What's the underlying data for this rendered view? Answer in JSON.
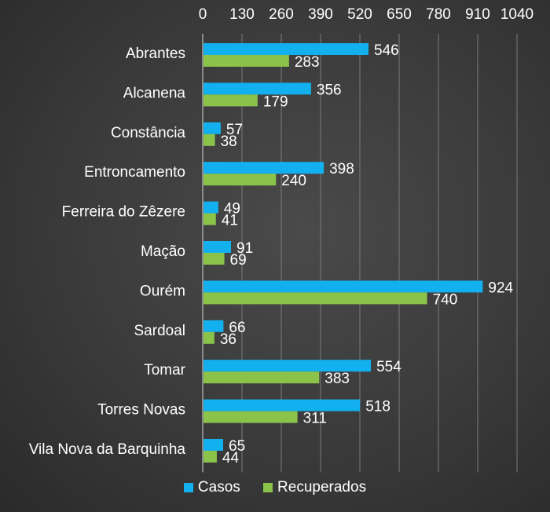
{
  "chart_data": {
    "type": "bar",
    "orientation": "horizontal",
    "categories": [
      "Abrantes",
      "Alcanena",
      "Constância",
      "Entroncamento",
      "Ferreira do Zêzere",
      "Mação",
      "Ourém",
      "Sardoal",
      "Tomar",
      "Torres Novas",
      "Vila Nova da Barquinha"
    ],
    "series": [
      {
        "name": "Casos",
        "color": "#13b0f0",
        "values": [
          546,
          356,
          57,
          398,
          49,
          91,
          924,
          66,
          554,
          518,
          65
        ]
      },
      {
        "name": "Recuperados",
        "color": "#8bc34a",
        "values": [
          283,
          179,
          38,
          240,
          41,
          69,
          740,
          36,
          383,
          311,
          44
        ]
      }
    ],
    "xlim": [
      0,
      1040
    ],
    "ticks": [
      "0",
      "130",
      "260",
      "390",
      "520",
      "650",
      "780",
      "910",
      "1040"
    ],
    "grid": true,
    "legend_position": "bottom"
  },
  "legend": {
    "casos": "Casos",
    "recuperados": "Recuperados"
  }
}
